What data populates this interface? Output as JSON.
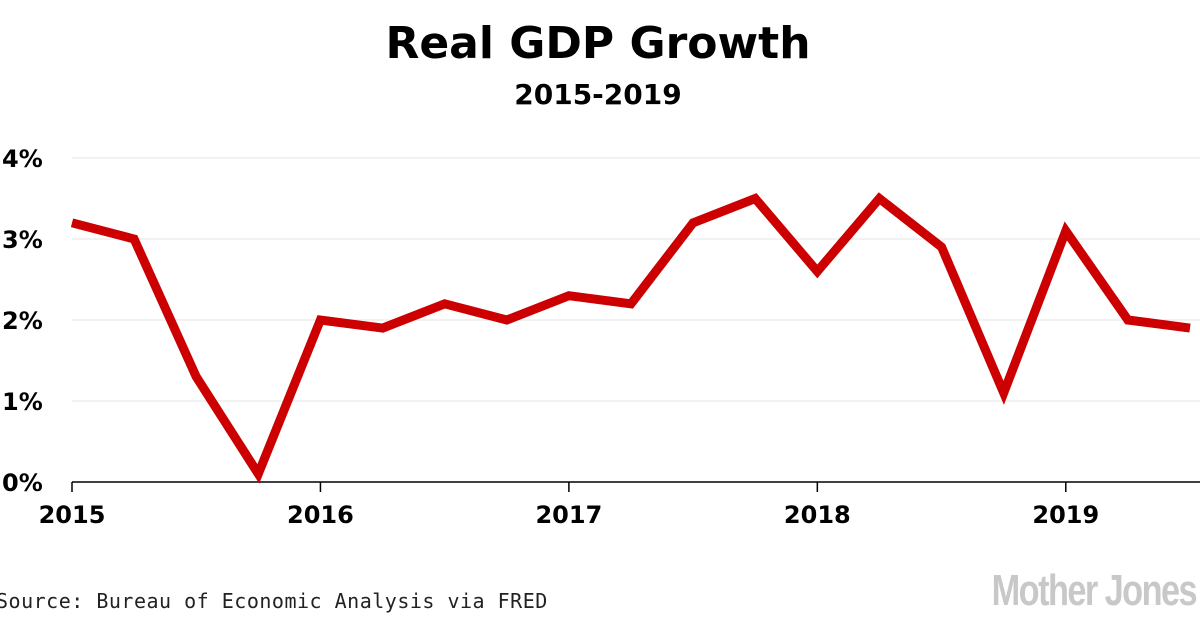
{
  "chart_data": {
    "type": "line",
    "title": "Real GDP Growth",
    "subtitle": "2015-2019",
    "ylabel": "",
    "xlabel": "",
    "ylim": [
      0,
      4
    ],
    "xlim": [
      2015,
      2019.5
    ],
    "y_ticks": [
      0,
      1,
      2,
      3,
      4
    ],
    "y_tick_labels": [
      "0%",
      "1%",
      "2%",
      "3%",
      "4%"
    ],
    "x_ticks": [
      2015,
      2016,
      2017,
      2018,
      2019
    ],
    "x_tick_labels": [
      "2015",
      "2016",
      "2017",
      "2018",
      "2019"
    ],
    "grid": true,
    "series": [
      {
        "name": "Real GDP Growth",
        "color": "#cc0000",
        "x": [
          2015,
          2015.25,
          2015.5,
          2015.75,
          2016,
          2016.25,
          2016.5,
          2016.75,
          2017,
          2017.25,
          2017.5,
          2017.75,
          2018,
          2018.25,
          2018.5,
          2018.75,
          2019,
          2019.25,
          2019.5
        ],
        "values": [
          3.2,
          3.0,
          1.3,
          0.1,
          2.0,
          1.9,
          2.2,
          2.0,
          2.3,
          2.2,
          3.2,
          3.5,
          2.6,
          3.5,
          2.9,
          1.1,
          3.1,
          2.0,
          1.9
        ]
      }
    ]
  },
  "source": "Source: Bureau of Economic Analysis via FRED",
  "brand": "Mother Jones",
  "colors": {
    "line": "#cc0000",
    "grid": "#e6e6e6",
    "axis": "#000000",
    "brand": "#c8c8c8"
  }
}
